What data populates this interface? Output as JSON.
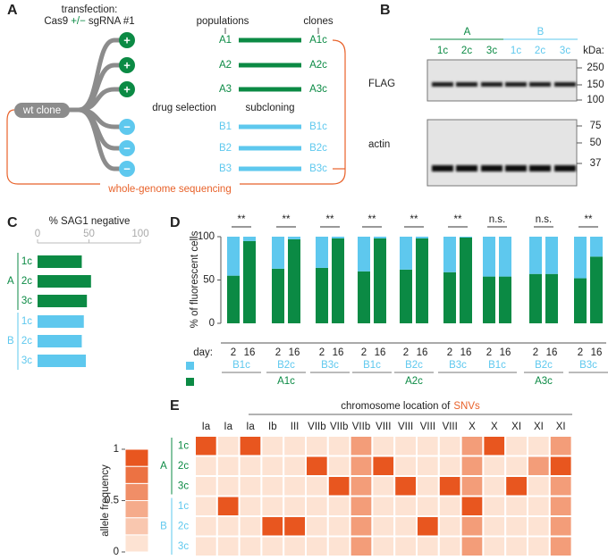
{
  "panel_a": {
    "label": "A",
    "header": "transfection:",
    "cas9": [
      "Cas9",
      "+/−",
      "sgRNA #1"
    ],
    "populations": "populations",
    "clones": "clones",
    "root": "wt clone",
    "steps": [
      "drug selection",
      "subcloning"
    ],
    "rows": [
      {
        "sign": "+",
        "population": "A1",
        "clone": "A1c"
      },
      {
        "sign": "+",
        "population": "A2",
        "clone": "A2c"
      },
      {
        "sign": "+",
        "population": "A3",
        "clone": "A3c"
      },
      {
        "sign": "−",
        "population": "B1",
        "clone": "B1c"
      },
      {
        "sign": "−",
        "population": "B2",
        "clone": "B2c"
      },
      {
        "sign": "−",
        "population": "B3",
        "clone": "B3c"
      }
    ],
    "footer": "whole-genome sequencing"
  },
  "panel_b": {
    "label": "B",
    "groups": [
      {
        "name": "A",
        "lanes": [
          "1c",
          "2c",
          "3c"
        ]
      },
      {
        "name": "B",
        "lanes": [
          "1c",
          "2c",
          "3c"
        ]
      }
    ],
    "unit": "kDa:",
    "blots": [
      {
        "name": "FLAG",
        "markers": [
          250,
          150,
          100
        ]
      },
      {
        "name": "actin",
        "markers": [
          75,
          50,
          37
        ]
      }
    ]
  },
  "chart_data": [
    {
      "type": "bar",
      "label": "C",
      "title": "% SAG1 negative",
      "xlim": [
        0,
        100
      ],
      "xticks": [
        0,
        50,
        100
      ],
      "groups": [
        {
          "name": "A",
          "color": "#0b8a44",
          "categories": [
            "1c",
            "2c",
            "3c"
          ],
          "values": [
            43,
            52,
            48
          ]
        },
        {
          "name": "B",
          "color": "#5ec8ee",
          "categories": [
            "1c",
            "2c",
            "3c"
          ],
          "values": [
            45,
            43,
            47
          ]
        }
      ]
    },
    {
      "type": "stacked-bar",
      "label": "D",
      "ylabel": "% of fluorescent cells",
      "ylim": [
        0,
        100
      ],
      "yticks": [
        0,
        50,
        100
      ],
      "x_title": "day:",
      "categories": [
        "2",
        "16",
        "2",
        "16",
        "2",
        "16",
        "2",
        "16",
        "2",
        "16",
        "2",
        "16",
        "2",
        "16",
        "2",
        "16",
        "2",
        "16"
      ],
      "series": [
        {
          "color": "#0b8a44",
          "values": [
            55,
            95,
            63,
            97,
            64,
            98,
            60,
            98,
            62,
            98,
            59,
            99,
            54,
            54,
            57,
            57,
            52,
            77
          ]
        },
        {
          "color": "#5ec8ee",
          "values": [
            45,
            5,
            37,
            3,
            36,
            2,
            40,
            2,
            38,
            2,
            41,
            1,
            46,
            46,
            43,
            43,
            48,
            23
          ]
        }
      ],
      "significance": [
        "**",
        "**",
        "**",
        "**",
        "**",
        "**",
        "n.s.",
        "n.s.",
        "**"
      ],
      "blue_labels": [
        "B1c",
        "B2c",
        "B3c",
        "B1c",
        "B2c",
        "B3c",
        "B1c",
        "B2c",
        "B3c"
      ],
      "green_labels": [
        "A1c",
        "A2c",
        "A3c"
      ]
    },
    {
      "type": "heatmap",
      "label": "E",
      "title": [
        "chromosome location of",
        "SNVs"
      ],
      "columns": [
        "Ia",
        "Ia",
        "Ia",
        "Ib",
        "III",
        "VIIb",
        "VIIb",
        "VIIb",
        "VIII",
        "VIII",
        "VIII",
        "VIII",
        "X",
        "X",
        "XI",
        "XI",
        "XI"
      ],
      "row_groups": [
        {
          "name": "A",
          "color": "#0b8a44",
          "rows": [
            "1c",
            "2c",
            "3c"
          ]
        },
        {
          "name": "B",
          "color": "#5ec8ee",
          "rows": [
            "1c",
            "2c",
            "3c"
          ]
        }
      ],
      "values": [
        [
          1,
          0,
          1,
          0,
          0,
          0,
          0,
          0.5,
          0,
          0,
          0,
          0,
          0.5,
          1,
          0,
          0,
          0.5
        ],
        [
          0,
          0,
          0,
          0,
          0,
          1,
          0,
          0.5,
          1,
          0,
          0,
          0,
          0.5,
          0,
          0,
          0.5,
          1
        ],
        [
          0,
          0,
          0,
          0,
          0,
          0,
          1,
          0.5,
          0,
          1,
          0,
          1,
          0.5,
          0,
          1,
          0,
          0.5
        ],
        [
          0,
          1,
          0,
          0,
          0,
          0,
          0,
          0.5,
          0,
          0,
          0,
          0,
          1,
          0,
          0,
          0,
          0.5
        ],
        [
          0,
          0,
          0,
          1,
          1,
          0,
          0,
          0.5,
          0,
          0,
          1,
          0,
          0.5,
          0,
          0,
          0,
          0.5
        ],
        [
          0,
          0,
          0,
          0,
          0,
          0,
          0,
          0.5,
          0,
          0,
          0,
          0,
          0.5,
          0,
          0,
          0,
          0.5
        ]
      ],
      "clim": [
        0,
        1
      ],
      "colorbar_ticks": [
        0,
        0.5,
        1
      ],
      "colorbar_label": "allele frequency",
      "colors": [
        "#fde3d3",
        "#e8561f"
      ]
    }
  ]
}
